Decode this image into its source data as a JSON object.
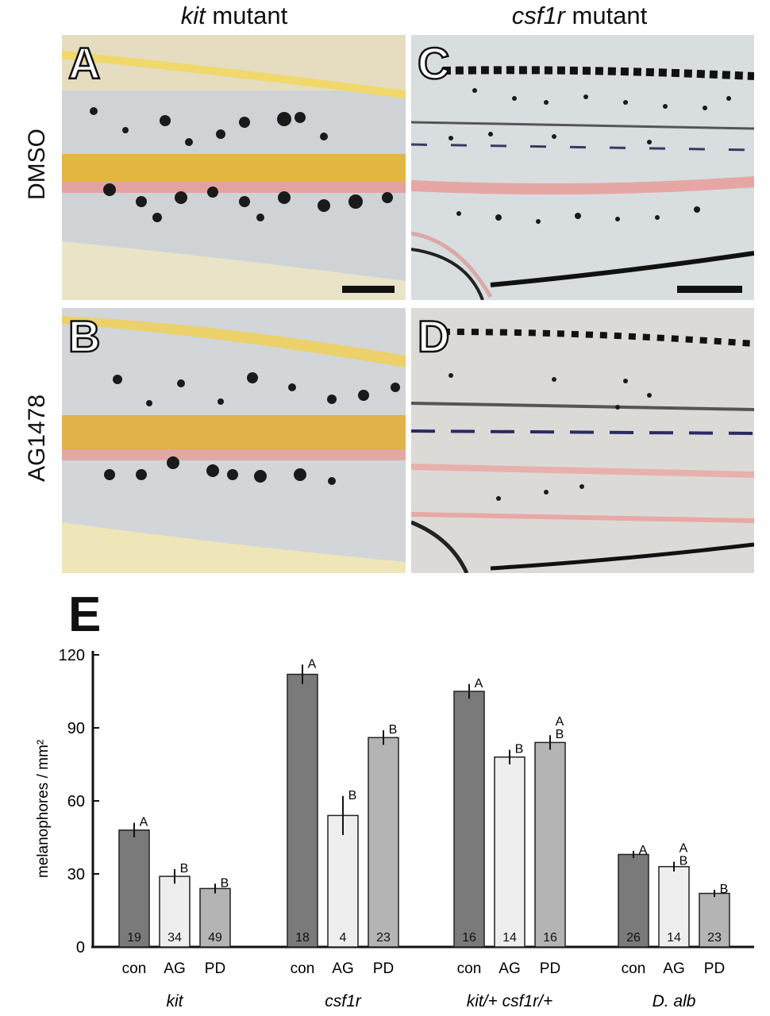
{
  "figure": {
    "columns": [
      {
        "italic": "kit",
        "rest": " mutant"
      },
      {
        "italic": "csf1r",
        "rest": " mutant"
      }
    ],
    "rows": [
      "DMSO",
      "AG1478"
    ],
    "panels": [
      "A",
      "B",
      "C",
      "D"
    ],
    "chart_letter": "E"
  },
  "chart_data": {
    "type": "bar",
    "ylabel": "melanophores / mm²",
    "ylim": [
      0,
      120
    ],
    "yticks": [
      0,
      30,
      60,
      90,
      120
    ],
    "groups": [
      {
        "label": "kit",
        "italic": true,
        "bars": [
          {
            "category": "con",
            "value": 48,
            "err": 3,
            "n": "19",
            "letter": "A"
          },
          {
            "category": "AG",
            "value": 29,
            "err": 3,
            "n": "34",
            "letter": "B"
          },
          {
            "category": "PD",
            "value": 24,
            "err": 2,
            "n": "49",
            "letter": "B"
          }
        ]
      },
      {
        "label": "csf1r",
        "italic": true,
        "bars": [
          {
            "category": "con",
            "value": 112,
            "err": 4,
            "n": "18",
            "letter": "A"
          },
          {
            "category": "AG",
            "value": 54,
            "err": 8,
            "n": "4",
            "letter": "B"
          },
          {
            "category": "PD",
            "value": 86,
            "err": 3,
            "n": "23",
            "letter": "B"
          }
        ]
      },
      {
        "label": "kit/+ csf1r/+",
        "italic": true,
        "bars": [
          {
            "category": "con",
            "value": 105,
            "err": 3,
            "n": "16",
            "letter": "A"
          },
          {
            "category": "AG",
            "value": 78,
            "err": 3,
            "n": "14",
            "letter": "B"
          },
          {
            "category": "PD",
            "value": 84,
            "err": 3,
            "n": "16",
            "letter": "A\nB"
          }
        ]
      },
      {
        "label": "D. alb",
        "italic": true,
        "bars": [
          {
            "category": "con",
            "value": 38,
            "err": 1.5,
            "n": "26",
            "letter": "A"
          },
          {
            "category": "AG",
            "value": 33,
            "err": 2,
            "n": "14",
            "letter": "A\nB"
          },
          {
            "category": "PD",
            "value": 22,
            "err": 1.5,
            "n": "23",
            "letter": "B"
          }
        ]
      }
    ],
    "colors": {
      "con": "#7a7a7a",
      "AG": "#eeeeee",
      "PD": "#b4b4b4"
    }
  }
}
